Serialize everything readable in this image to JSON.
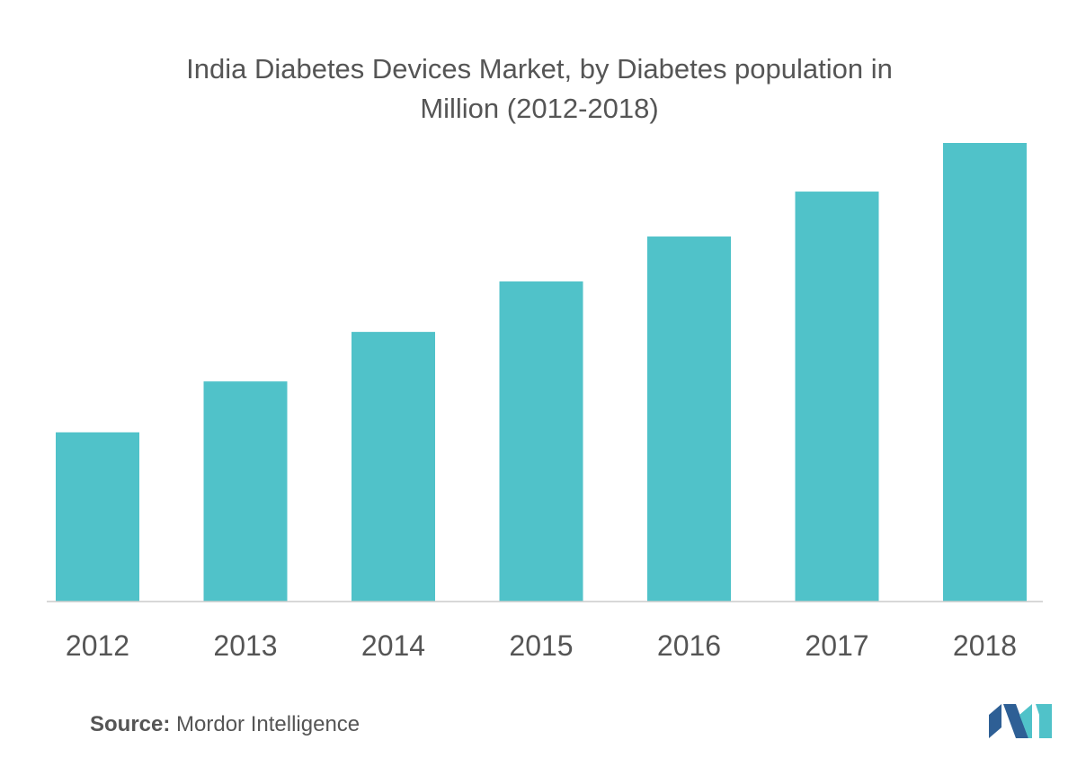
{
  "chart_data": {
    "type": "bar",
    "title_line1": "India Diabetes Devices Market, by Diabetes population in",
    "title_line2": "Million (2012-2018)",
    "categories": [
      "2012",
      "2013",
      "2014",
      "2015",
      "2016",
      "2017",
      "2018"
    ],
    "values": [
      36.9,
      48.0,
      58.8,
      69.8,
      79.6,
      89.4,
      100
    ],
    "value_note": "relative heights, 2018 = 100 (no y-axis shown)",
    "xlabel": "",
    "ylabel": "",
    "ylim": [
      0,
      100
    ],
    "grid": false,
    "bar_color": "#50C2C9"
  },
  "source": {
    "label": "Source:",
    "text": "Mordor Intelligence"
  },
  "logo": {
    "colors": [
      "#2E5F95",
      "#50C2C9"
    ]
  }
}
